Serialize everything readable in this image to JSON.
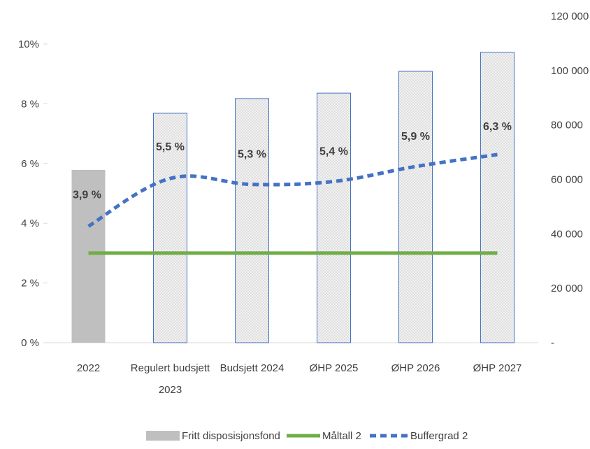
{
  "chart_data": {
    "type": "bar",
    "categories": [
      [
        "2022"
      ],
      [
        "Regulert budsjett",
        "2023"
      ],
      [
        "Budsjett 2024"
      ],
      [
        "ØHP 2025"
      ],
      [
        "ØHP 2026"
      ],
      [
        "ØHP 2027"
      ]
    ],
    "left_axis": {
      "min": 0,
      "max": 10,
      "step": 2,
      "tick_labels": [
        "0 %",
        "2 %",
        "4 %",
        "6 %",
        "8 %",
        "10%"
      ]
    },
    "right_axis": {
      "min": 0,
      "max": 120000,
      "step": 20000,
      "tick_labels": [
        "-",
        "20 000",
        "40 000",
        "60 000",
        "80 000",
        "100 000",
        "120 000"
      ]
    },
    "series": [
      {
        "name": "Fritt disposisjonsfond",
        "type": "bar",
        "axis": "right",
        "values": [
          63500,
          84300,
          89700,
          91700,
          99700,
          106700
        ],
        "styles": [
          "solid",
          "pattern",
          "pattern",
          "pattern",
          "pattern",
          "pattern"
        ]
      },
      {
        "name": "Måltall 2",
        "type": "line",
        "axis": "left",
        "color": "#70ad47",
        "values": [
          3.0,
          3.0,
          3.0,
          3.0,
          3.0,
          3.0
        ]
      },
      {
        "name": "Buffergrad 2",
        "type": "line",
        "axis": "left",
        "color": "#4472c4",
        "dashed": true,
        "values": [
          3.9,
          5.5,
          5.3,
          5.4,
          5.9,
          6.3
        ],
        "data_labels": [
          "3,9 %",
          "5,5 %",
          "5,3 %",
          "5,4 %",
          "5,9 %",
          "6,3 %"
        ]
      }
    ],
    "legend_position": "bottom",
    "grid": false,
    "colors": {
      "bar_solid": "#bfbfbf",
      "bar_outline": "#4472c4",
      "maltall": "#70ad47",
      "buffergrad": "#4472c4",
      "axis": "#d9d9d9"
    }
  }
}
